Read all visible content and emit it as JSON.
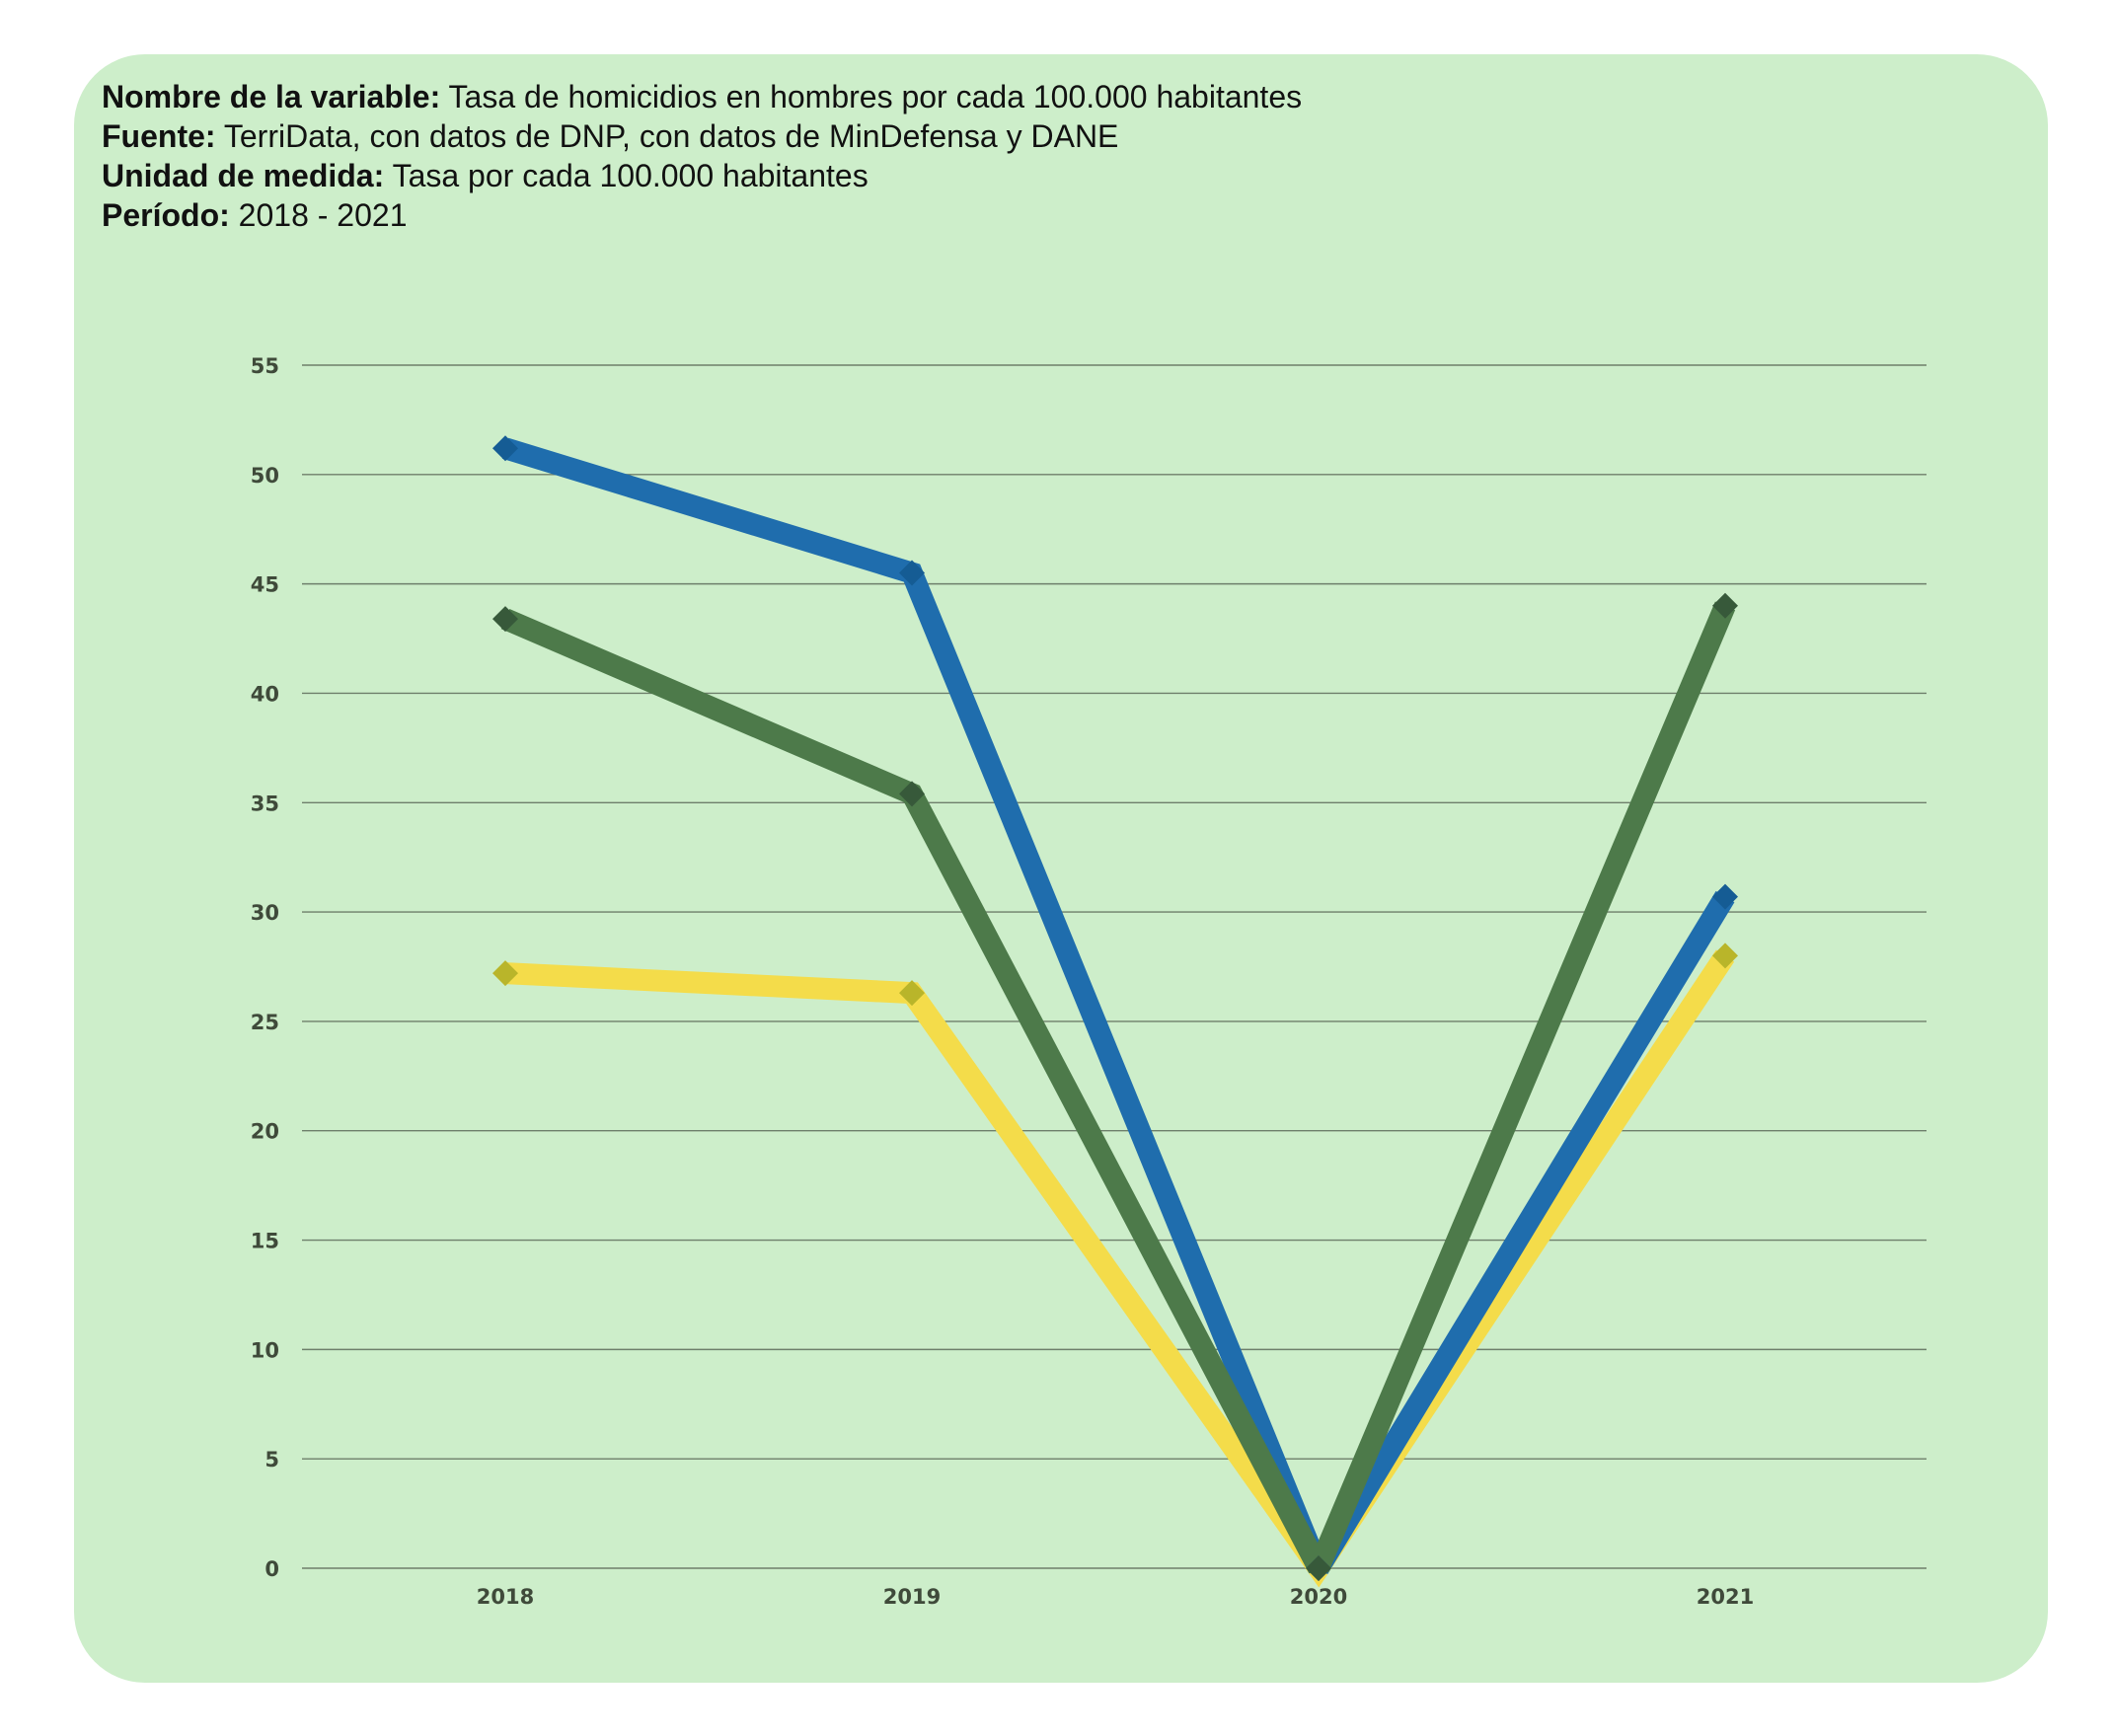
{
  "meta": {
    "variable_label": "Nombre de la variable:",
    "variable_value": "Tasa de homicidios en hombres por cada 100.000 habitantes",
    "source_label": "Fuente:",
    "source_value": "TerriData, con datos de DNP,  con datos de MinDefensa y DANE",
    "unit_label": "Unidad de medida:",
    "unit_value": "Tasa por cada 100.000 habitantes",
    "period_label": "Período:",
    "period_value": "2018 - 2021"
  },
  "colors": {
    "card_background": "#cdeeca",
    "gridline": "#6e7f6b",
    "tick_text": "#3f4a3a"
  },
  "chart_data": {
    "type": "line",
    "categories": [
      "2018",
      "2019",
      "2020",
      "2021"
    ],
    "yticks": [
      0,
      5,
      10,
      15,
      20,
      25,
      30,
      35,
      40,
      45,
      50,
      55
    ],
    "ylim": [
      0,
      55
    ],
    "xlabel": "",
    "ylabel": "",
    "grid": true,
    "legend": "none",
    "series": [
      {
        "values": [
          51.2,
          45.5,
          0,
          30.7
        ],
        "color": "#1f6dad",
        "marker_color": "#155c94"
      },
      {
        "values": [
          43.4,
          35.4,
          0,
          44.0
        ],
        "color": "#4d7a4a",
        "marker_color": "#37593a"
      },
      {
        "values": [
          27.2,
          26.3,
          0,
          28.0
        ],
        "color": "#f4dc4a",
        "marker_color": "#b9b52a"
      }
    ]
  }
}
